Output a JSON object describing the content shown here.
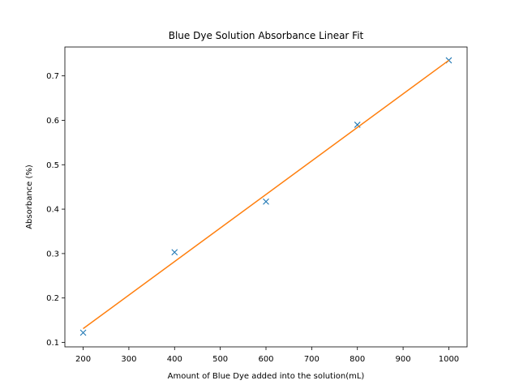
{
  "chart_data": {
    "type": "scatter",
    "title": "Blue Dye Solution Absorbance Linear Fit",
    "xlabel": "Amount of Blue Dye added into the solution(mL)",
    "ylabel": "Absorbance (%)",
    "xlim": [
      160,
      1040
    ],
    "ylim": [
      0.09,
      0.765
    ],
    "grid": false,
    "x_ticks": [
      200,
      300,
      400,
      500,
      600,
      700,
      800,
      900,
      1000
    ],
    "y_ticks": [
      0.1,
      0.2,
      0.3,
      0.4,
      0.5,
      0.6,
      0.7
    ],
    "series": [
      {
        "marker": "x",
        "color": "#1f77b4",
        "x": [
          200,
          400,
          600,
          800,
          1000
        ],
        "y": [
          0.122,
          0.303,
          0.417,
          0.59,
          0.735
        ]
      },
      {
        "marker": "line",
        "color": "#ff7f0e",
        "x": [
          200,
          1000
        ],
        "y": [
          0.131,
          0.735
        ]
      }
    ]
  }
}
